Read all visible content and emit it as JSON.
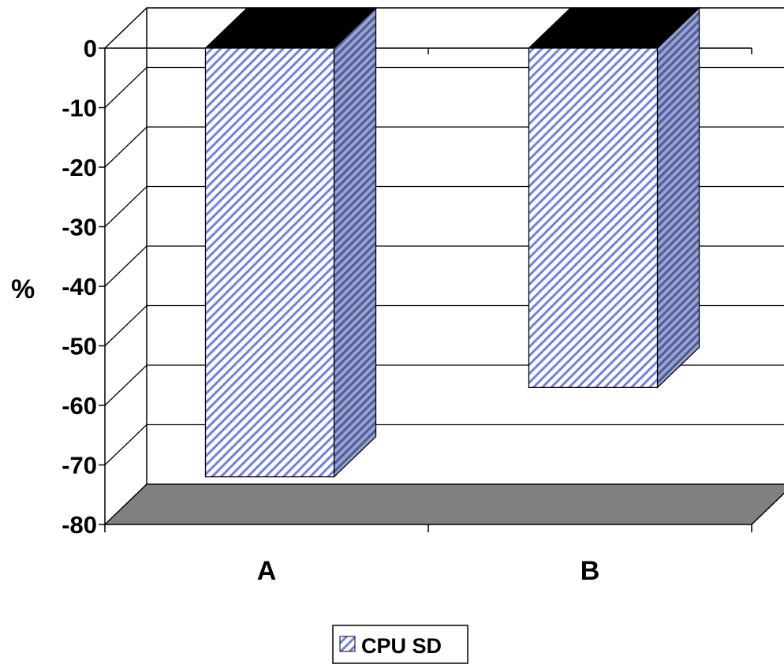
{
  "chart_data": {
    "type": "bar",
    "style": "3d",
    "categories": [
      "A",
      "B"
    ],
    "series": [
      {
        "name": "CPU SD",
        "values": [
          -72,
          -57
        ]
      }
    ],
    "title": "",
    "xlabel": "",
    "ylabel": "%",
    "ylim": [
      -80,
      0
    ],
    "yticks": [
      "0",
      "-10",
      "-20",
      "-30",
      "-40",
      "-50",
      "-60",
      "-70",
      "-80"
    ],
    "grid": true,
    "legend": {
      "position": "bottom"
    },
    "colors": {
      "bar_front_stripe": "#6f7fe6",
      "bar_side_stripe": "#4d5a9f",
      "bar_top": "#000000",
      "floor": "#808080",
      "gridline": "#000000"
    }
  }
}
